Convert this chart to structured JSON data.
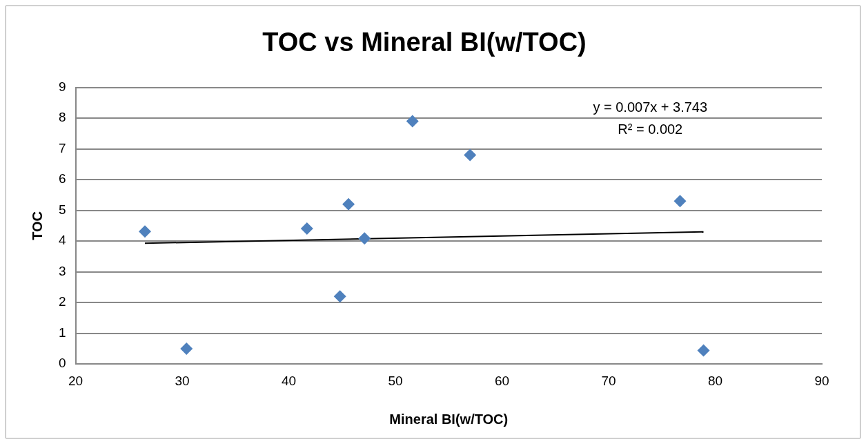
{
  "chart_data": {
    "type": "scatter",
    "title": "TOC vs Mineral BI(w/TOC)",
    "xlabel": "Mineral BI(w/TOC)",
    "ylabel": "TOC",
    "xlim": [
      20,
      90
    ],
    "xticks": [
      20,
      30,
      40,
      50,
      60,
      70,
      80,
      90
    ],
    "ylim": [
      0,
      9
    ],
    "yticks": [
      0,
      1,
      2,
      3,
      4,
      5,
      6,
      7,
      8,
      9
    ],
    "grid": "y",
    "legend": false,
    "marker": "diamond",
    "annotations": [
      "y = 0.007x + 3.743",
      "R² = 0.002"
    ],
    "series": [
      {
        "type": "scatter",
        "color": "#4f81bd",
        "x": [
          26.5,
          30.4,
          41.7,
          44.8,
          45.6,
          47.1,
          51.6,
          57.0,
          76.7,
          78.9
        ],
        "values": [
          4.31,
          0.5,
          4.41,
          2.2,
          5.2,
          4.09,
          7.9,
          6.8,
          5.3,
          0.44
        ]
      },
      {
        "type": "line",
        "color": "#000000",
        "marker": "none",
        "x": [
          26.5,
          78.9
        ],
        "values": [
          3.93,
          4.3
        ]
      }
    ]
  }
}
